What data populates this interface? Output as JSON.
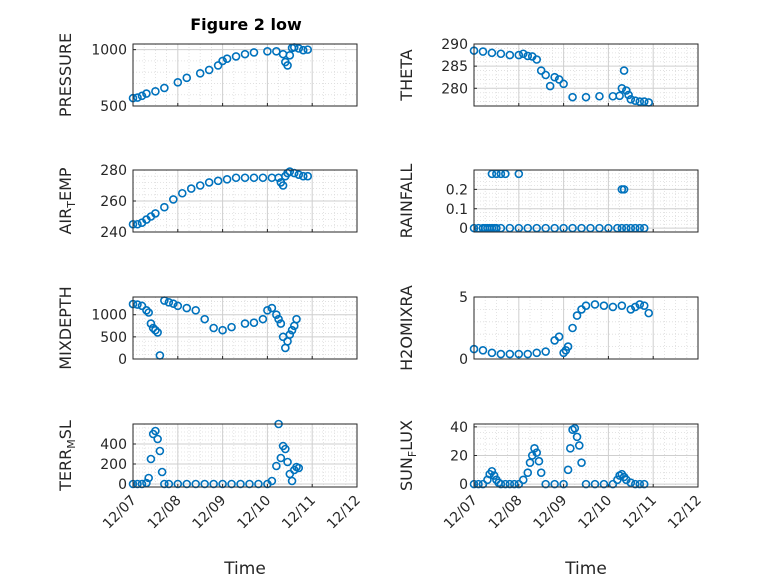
{
  "figure_title": "Figure 2 low",
  "x_tick_labels": [
    "12/07",
    "12/08",
    "12/09",
    "12/10",
    "12/11",
    "12/12"
  ],
  "colors": {
    "marker": "#0072BD",
    "axes": "#262626",
    "grid": "#dcdcdc",
    "background": "#ffffff"
  },
  "chart_data": [
    {
      "type": "scatter",
      "title": "Figure 2 low",
      "ylabel": "PRESSURE",
      "ylabel_sub": "",
      "xlabel": "",
      "x_ticks_shown": false,
      "xlim": [
        0,
        5
      ],
      "ylim": [
        500,
        1050
      ],
      "yticks": [
        500,
        1000
      ],
      "ytick_labels": [
        "500",
        "1000"
      ],
      "grid": true,
      "minor_grid": true,
      "series": [
        {
          "x": [
            0,
            0.1,
            0.2,
            0.3,
            0.5,
            0.7,
            1.0,
            1.2,
            1.5,
            1.7,
            1.9,
            2.0,
            2.1,
            2.3,
            2.5,
            2.7,
            3.0,
            3.2,
            3.35,
            3.4,
            3.45,
            3.5,
            3.55,
            3.6,
            3.7,
            3.8,
            3.9
          ],
          "y": [
            570,
            575,
            590,
            610,
            630,
            660,
            710,
            750,
            790,
            820,
            860,
            900,
            920,
            940,
            960,
            975,
            985,
            985,
            960,
            890,
            860,
            950,
            1015,
            1020,
            1010,
            995,
            1000
          ]
        }
      ]
    },
    {
      "type": "scatter",
      "ylabel": "THETA",
      "ylabel_sub": "",
      "xlabel": "",
      "x_ticks_shown": false,
      "xlim": [
        0,
        5
      ],
      "ylim": [
        276,
        290
      ],
      "yticks": [
        280,
        285,
        290
      ],
      "ytick_labels": [
        "280",
        "285",
        "290"
      ],
      "grid": true,
      "minor_grid": true,
      "series": [
        {
          "x": [
            0,
            0.2,
            0.4,
            0.6,
            0.8,
            1.0,
            1.1,
            1.2,
            1.3,
            1.4,
            1.5,
            1.6,
            1.7,
            1.8,
            1.9,
            2.0,
            2.2,
            2.5,
            2.8,
            3.1,
            3.25,
            3.3,
            3.35,
            3.4,
            3.45,
            3.5,
            3.6,
            3.7,
            3.8,
            3.9
          ],
          "y": [
            288.5,
            288.3,
            288,
            287.8,
            287.5,
            287.5,
            287.8,
            287.3,
            287.2,
            286.5,
            284,
            283,
            280.5,
            282.5,
            282,
            281,
            278,
            278,
            278.2,
            278.2,
            278.3,
            280,
            284,
            279.5,
            278.5,
            277.5,
            277.2,
            277,
            277,
            276.8
          ]
        }
      ]
    },
    {
      "type": "scatter",
      "ylabel": "AIR",
      "ylabel_sub": "T",
      "ylabel_rest": "EMP",
      "xlabel": "",
      "x_ticks_shown": false,
      "xlim": [
        0,
        5
      ],
      "ylim": [
        240,
        280
      ],
      "yticks": [
        240,
        260,
        280
      ],
      "ytick_labels": [
        "240",
        "260",
        "280"
      ],
      "grid": true,
      "minor_grid": true,
      "series": [
        {
          "x": [
            0,
            0.1,
            0.2,
            0.3,
            0.4,
            0.5,
            0.7,
            0.9,
            1.1,
            1.3,
            1.5,
            1.7,
            1.9,
            2.1,
            2.3,
            2.5,
            2.7,
            2.9,
            3.1,
            3.25,
            3.3,
            3.35,
            3.4,
            3.45,
            3.5,
            3.6,
            3.7,
            3.8,
            3.9
          ],
          "y": [
            245,
            245,
            246,
            248,
            250,
            252,
            256,
            261,
            265,
            268,
            270,
            272,
            273,
            274,
            275,
            275,
            275,
            275,
            275,
            275,
            272,
            270,
            276,
            278,
            279,
            278,
            277,
            276,
            276
          ]
        }
      ]
    },
    {
      "type": "scatter",
      "ylabel": "RAINFALL",
      "ylabel_sub": "",
      "xlabel": "",
      "x_ticks_shown": false,
      "xlim": [
        0,
        5
      ],
      "ylim": [
        -0.02,
        0.3
      ],
      "yticks": [
        0,
        0.1,
        0.2
      ],
      "ytick_labels": [
        "0",
        "0.1",
        "0.2"
      ],
      "grid": true,
      "minor_grid": true,
      "series": [
        {
          "x": [
            0,
            0.1,
            0.2,
            0.25,
            0.3,
            0.35,
            0.4,
            0.45,
            0.5,
            0.6,
            0.8,
            1.0,
            1.2,
            1.4,
            1.6,
            1.8,
            2.0,
            2.2,
            2.4,
            2.6,
            2.8,
            3.0,
            3.2,
            3.3,
            3.4,
            3.5,
            3.6,
            3.7,
            3.8,
            0.4,
            0.5,
            0.6,
            0.7,
            1.0,
            3.3,
            3.35
          ],
          "y": [
            0,
            0,
            0,
            0,
            0,
            0,
            0,
            0,
            0,
            0,
            0,
            0,
            0,
            0,
            0,
            0,
            0,
            0,
            0,
            0,
            0,
            0,
            0,
            0,
            0,
            0,
            0,
            0,
            0,
            0.28,
            0.28,
            0.28,
            0.28,
            0.28,
            0.2,
            0.2
          ]
        }
      ]
    },
    {
      "type": "scatter",
      "ylabel": "MIXDEPTH",
      "ylabel_sub": "",
      "xlabel": "",
      "x_ticks_shown": false,
      "xlim": [
        0,
        5
      ],
      "ylim": [
        0,
        1400
      ],
      "yticks": [
        0,
        500,
        1000
      ],
      "ytick_labels": [
        "0",
        "500",
        "1000"
      ],
      "grid": true,
      "minor_grid": true,
      "series": [
        {
          "x": [
            0,
            0.1,
            0.2,
            0.3,
            0.35,
            0.4,
            0.45,
            0.5,
            0.55,
            0.6,
            0.7,
            0.8,
            0.9,
            1.0,
            1.2,
            1.4,
            1.6,
            1.8,
            2.0,
            2.2,
            2.5,
            2.7,
            2.9,
            3.0,
            3.1,
            3.2,
            3.25,
            3.3,
            3.35,
            3.4,
            3.45,
            3.5,
            3.55,
            3.6,
            3.65
          ],
          "y": [
            1240,
            1230,
            1200,
            1100,
            1050,
            800,
            700,
            650,
            600,
            80,
            1320,
            1280,
            1250,
            1200,
            1150,
            1100,
            900,
            700,
            650,
            720,
            800,
            820,
            900,
            1100,
            1150,
            1000,
            900,
            800,
            500,
            250,
            400,
            550,
            650,
            750,
            900
          ]
        }
      ]
    },
    {
      "type": "scatter",
      "ylabel": "H2OMIXRA",
      "ylabel_sub": "",
      "xlabel": "",
      "x_ticks_shown": false,
      "xlim": [
        0,
        5
      ],
      "ylim": [
        0,
        5
      ],
      "yticks": [
        0,
        5
      ],
      "ytick_labels": [
        "0",
        "5"
      ],
      "grid": true,
      "minor_grid": true,
      "series": [
        {
          "x": [
            0,
            0.2,
            0.4,
            0.6,
            0.8,
            1.0,
            1.2,
            1.4,
            1.6,
            1.8,
            1.9,
            2.0,
            2.05,
            2.1,
            2.2,
            2.3,
            2.4,
            2.5,
            2.7,
            2.9,
            3.1,
            3.3,
            3.5,
            3.6,
            3.7,
            3.8,
            3.9
          ],
          "y": [
            0.8,
            0.7,
            0.5,
            0.4,
            0.4,
            0.4,
            0.4,
            0.5,
            0.6,
            1.5,
            1.8,
            0.5,
            0.7,
            1.0,
            2.5,
            3.5,
            4.0,
            4.3,
            4.4,
            4.3,
            4.2,
            4.3,
            4.0,
            4.2,
            4.4,
            4.3,
            3.7
          ]
        }
      ]
    },
    {
      "type": "scatter",
      "ylabel": "TERR",
      "ylabel_sub": "M",
      "ylabel_rest": "SL",
      "xlabel": "Time",
      "x_ticks_shown": true,
      "xlim": [
        0,
        5
      ],
      "ylim": [
        -30,
        600
      ],
      "yticks": [
        0,
        200,
        400
      ],
      "ytick_labels": [
        "0",
        "200",
        "400"
      ],
      "grid": true,
      "minor_grid": true,
      "series": [
        {
          "x": [
            0,
            0.1,
            0.2,
            0.3,
            0.35,
            0.4,
            0.45,
            0.5,
            0.55,
            0.6,
            0.65,
            0.7,
            0.8,
            1.0,
            1.2,
            1.4,
            1.6,
            1.8,
            2.0,
            2.2,
            2.4,
            2.6,
            2.8,
            3.0,
            3.1,
            3.2,
            3.25,
            3.3,
            3.35,
            3.4,
            3.45,
            3.5,
            3.55,
            3.6,
            3.65,
            3.7
          ],
          "y": [
            0,
            0,
            0,
            10,
            60,
            250,
            500,
            530,
            450,
            330,
            120,
            0,
            0,
            0,
            0,
            0,
            0,
            0,
            0,
            0,
            0,
            0,
            0,
            0,
            30,
            180,
            600,
            260,
            380,
            350,
            220,
            100,
            30,
            140,
            170,
            160
          ]
        }
      ]
    },
    {
      "type": "scatter",
      "ylabel": "SUN",
      "ylabel_sub": "F",
      "ylabel_rest": "LUX",
      "xlabel": "Time",
      "x_ticks_shown": true,
      "xlim": [
        0,
        5
      ],
      "ylim": [
        -2,
        42
      ],
      "yticks": [
        0,
        20,
        40
      ],
      "ytick_labels": [
        "0",
        "20",
        "40"
      ],
      "grid": true,
      "minor_grid": true,
      "series": [
        {
          "x": [
            0,
            0.1,
            0.2,
            0.3,
            0.35,
            0.4,
            0.45,
            0.5,
            0.55,
            0.6,
            0.7,
            0.8,
            0.9,
            1.0,
            1.1,
            1.2,
            1.25,
            1.3,
            1.35,
            1.4,
            1.45,
            1.5,
            1.6,
            1.8,
            2.0,
            2.1,
            2.15,
            2.2,
            2.25,
            2.3,
            2.35,
            2.4,
            2.5,
            2.7,
            2.9,
            3.1,
            3.2,
            3.25,
            3.3,
            3.35,
            3.4,
            3.5,
            3.6,
            3.7,
            3.8
          ],
          "y": [
            0,
            0,
            0,
            3,
            7,
            9,
            6,
            3,
            1,
            0,
            0,
            0,
            0,
            0,
            3,
            8,
            15,
            20,
            25,
            22,
            16,
            8,
            0,
            0,
            0,
            10,
            25,
            38,
            39,
            33,
            27,
            15,
            0,
            0,
            0,
            0,
            3,
            6,
            7,
            5,
            3,
            1,
            0,
            0,
            0
          ]
        }
      ]
    }
  ]
}
